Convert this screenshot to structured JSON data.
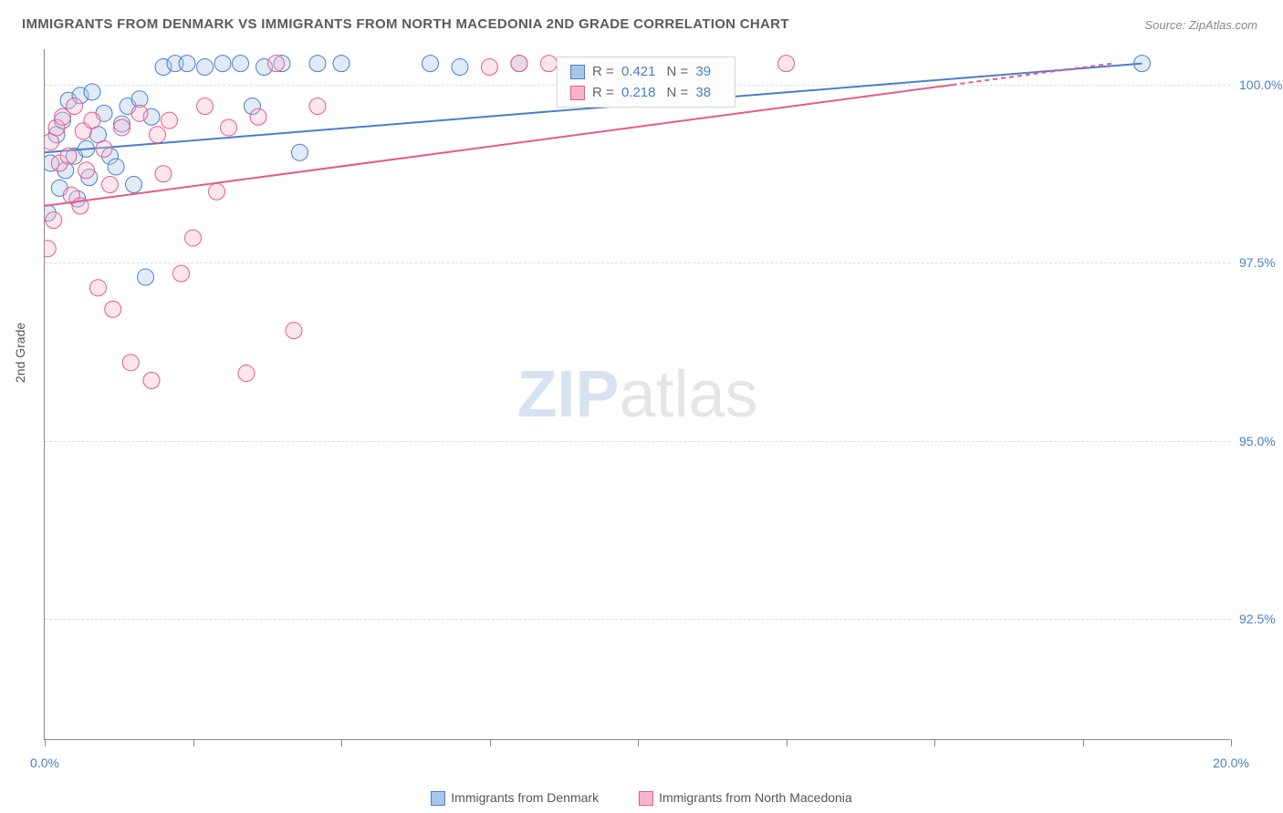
{
  "title": "IMMIGRANTS FROM DENMARK VS IMMIGRANTS FROM NORTH MACEDONIA 2ND GRADE CORRELATION CHART",
  "source": "Source: ZipAtlas.com",
  "ylabel": "2nd Grade",
  "watermark": {
    "part1": "ZIP",
    "part2": "atlas"
  },
  "chart": {
    "type": "scatter",
    "xlim": [
      0,
      20
    ],
    "ylim": [
      90.8,
      100.5
    ],
    "xtick_positions": [
      0,
      2.5,
      5,
      7.5,
      10,
      12.5,
      15,
      17.5,
      20
    ],
    "xtick_labels": {
      "0": "0.0%",
      "20": "20.0%"
    },
    "ytick_positions": [
      92.5,
      95.0,
      97.5,
      100.0
    ],
    "ytick_labels": [
      "92.5%",
      "95.0%",
      "97.5%",
      "100.0%"
    ],
    "background_color": "#ffffff",
    "grid_color": "#dddddd",
    "marker_radius": 9,
    "marker_fill_opacity": 0.35,
    "series": [
      {
        "name": "Immigrants from Denmark",
        "color_stroke": "#4a7ec9",
        "color_fill": "#a9c6ea",
        "R": "0.421",
        "N": "39",
        "trend": {
          "x1": 0,
          "y1": 99.05,
          "x2": 18.5,
          "y2": 100.3
        },
        "points": [
          [
            0.05,
            98.2
          ],
          [
            0.1,
            98.9
          ],
          [
            0.2,
            99.3
          ],
          [
            0.25,
            98.55
          ],
          [
            0.3,
            99.5
          ],
          [
            0.35,
            98.8
          ],
          [
            0.4,
            99.78
          ],
          [
            0.5,
            99.0
          ],
          [
            0.55,
            98.4
          ],
          [
            0.6,
            99.85
          ],
          [
            0.7,
            99.1
          ],
          [
            0.75,
            98.7
          ],
          [
            0.8,
            99.9
          ],
          [
            0.9,
            99.3
          ],
          [
            1.0,
            99.6
          ],
          [
            1.1,
            99.0
          ],
          [
            1.2,
            98.85
          ],
          [
            1.3,
            99.45
          ],
          [
            1.4,
            99.7
          ],
          [
            1.5,
            98.6
          ],
          [
            1.6,
            99.8
          ],
          [
            1.7,
            97.3
          ],
          [
            1.8,
            99.55
          ],
          [
            2.0,
            100.25
          ],
          [
            2.2,
            100.3
          ],
          [
            2.4,
            100.3
          ],
          [
            2.7,
            100.25
          ],
          [
            3.0,
            100.3
          ],
          [
            3.3,
            100.3
          ],
          [
            3.5,
            99.7
          ],
          [
            3.7,
            100.25
          ],
          [
            4.0,
            100.3
          ],
          [
            4.3,
            99.05
          ],
          [
            4.6,
            100.3
          ],
          [
            5.0,
            100.3
          ],
          [
            6.5,
            100.3
          ],
          [
            7.0,
            100.25
          ],
          [
            8.0,
            100.3
          ],
          [
            18.5,
            100.3
          ]
        ]
      },
      {
        "name": "Immigrants from North Macedonia",
        "color_stroke": "#e65a8a",
        "color_fill": "#f5b6cb",
        "R": "0.218",
        "N": "38",
        "trend": {
          "x1": 0,
          "y1": 98.3,
          "x2": 15.3,
          "y2": 100.0
        },
        "trend_dashed_ext": {
          "x1": 15.3,
          "y1": 100.0,
          "x2": 18.0,
          "y2": 100.3
        },
        "points": [
          [
            0.05,
            97.7
          ],
          [
            0.1,
            99.2
          ],
          [
            0.15,
            98.1
          ],
          [
            0.2,
            99.4
          ],
          [
            0.25,
            98.9
          ],
          [
            0.3,
            99.55
          ],
          [
            0.4,
            99.0
          ],
          [
            0.45,
            98.45
          ],
          [
            0.5,
            99.7
          ],
          [
            0.6,
            98.3
          ],
          [
            0.65,
            99.35
          ],
          [
            0.7,
            98.8
          ],
          [
            0.8,
            99.5
          ],
          [
            0.9,
            97.15
          ],
          [
            1.0,
            99.1
          ],
          [
            1.1,
            98.6
          ],
          [
            1.15,
            96.85
          ],
          [
            1.3,
            99.4
          ],
          [
            1.45,
            96.1
          ],
          [
            1.6,
            99.6
          ],
          [
            1.8,
            95.85
          ],
          [
            1.9,
            99.3
          ],
          [
            2.0,
            98.75
          ],
          [
            2.1,
            99.5
          ],
          [
            2.3,
            97.35
          ],
          [
            2.5,
            97.85
          ],
          [
            2.7,
            99.7
          ],
          [
            2.9,
            98.5
          ],
          [
            3.1,
            99.4
          ],
          [
            3.4,
            95.95
          ],
          [
            3.6,
            99.55
          ],
          [
            3.9,
            100.3
          ],
          [
            4.2,
            96.55
          ],
          [
            4.6,
            99.7
          ],
          [
            7.5,
            100.25
          ],
          [
            8.0,
            100.3
          ],
          [
            8.5,
            100.3
          ],
          [
            12.5,
            100.3
          ]
        ]
      }
    ]
  },
  "legend_bottom": [
    {
      "label": "Immigrants from Denmark",
      "fill": "#a9c6ea",
      "stroke": "#4a7ec9"
    },
    {
      "label": "Immigrants from North Macedonia",
      "fill": "#f5b6cb",
      "stroke": "#e65a8a"
    }
  ]
}
